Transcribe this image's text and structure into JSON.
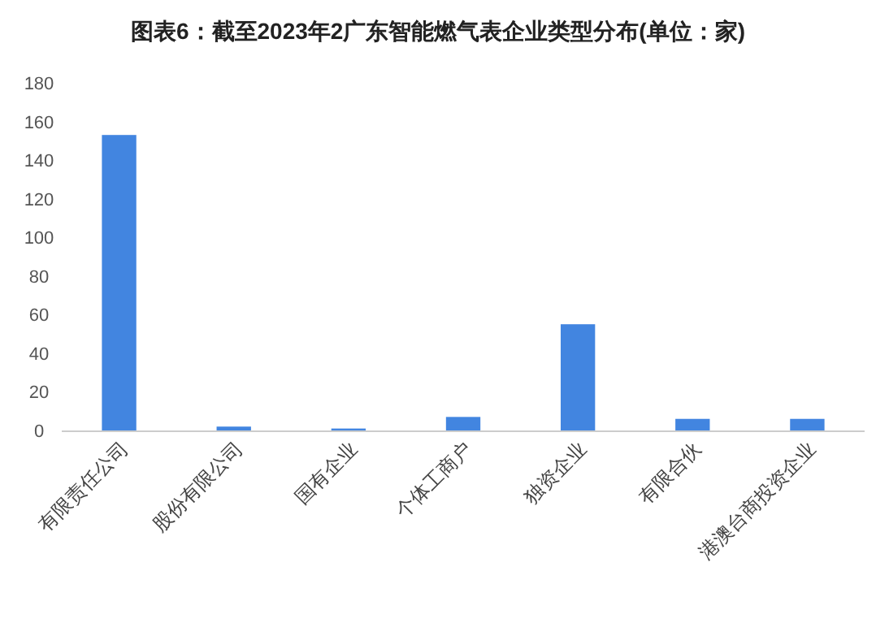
{
  "chart_data": {
    "type": "bar",
    "title": "图表6：截至2023年2广东智能燃气表企业类型分布(单位：家)",
    "categories": [
      "有限责任公司",
      "股份有限公司",
      "国有企业",
      "个体工商户",
      "独资企业",
      "有限合伙",
      "港澳台商投资企业"
    ],
    "values": [
      153,
      2,
      1,
      7,
      55,
      6,
      6
    ],
    "color": "#4285e0",
    "ylim": [
      0,
      180
    ],
    "yticks": [
      0,
      20,
      40,
      60,
      80,
      100,
      120,
      140,
      160,
      180
    ]
  }
}
